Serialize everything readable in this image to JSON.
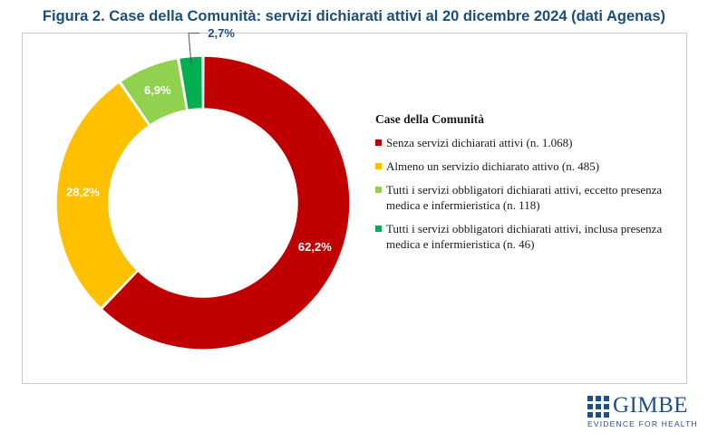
{
  "title": "Figura 2. Case della Comunità: servizi dichiarati attivi al 20 dicembre 2024 (dati Agenas)",
  "chart_data": {
    "type": "pie",
    "donut": true,
    "legend_title": "Case della Comunità",
    "legend_position": "right",
    "series": [
      {
        "name": "Senza servizi dichiarati attivi (n. 1.068)",
        "value": 62.2,
        "label": "62,2%",
        "color": "#c00000",
        "label_color": "#ffffff"
      },
      {
        "name": "Almeno un servizio dichiarato attivo (n. 485)",
        "value": 28.2,
        "label": "28,2%",
        "color": "#ffc000",
        "label_color": "#ffffff"
      },
      {
        "name": "Tutti i servizi obbligatori dichiarati attivi, eccetto presenza medica e infermieristica (n. 118)",
        "value": 6.9,
        "label": "6,9%",
        "color": "#92d050",
        "label_color": "#ffffff"
      },
      {
        "name": "Tutti i servizi obbligatori dichiarati attivi, inclusa presenza medica e infermieristica (n. 46)",
        "value": 2.7,
        "label": "2,7%",
        "color": "#00b050",
        "label_color": "#1f4e79"
      }
    ]
  },
  "logo": {
    "name": "GIMBE",
    "tagline": "EVIDENCE FOR HEALTH",
    "color": "#1f4f8f"
  }
}
